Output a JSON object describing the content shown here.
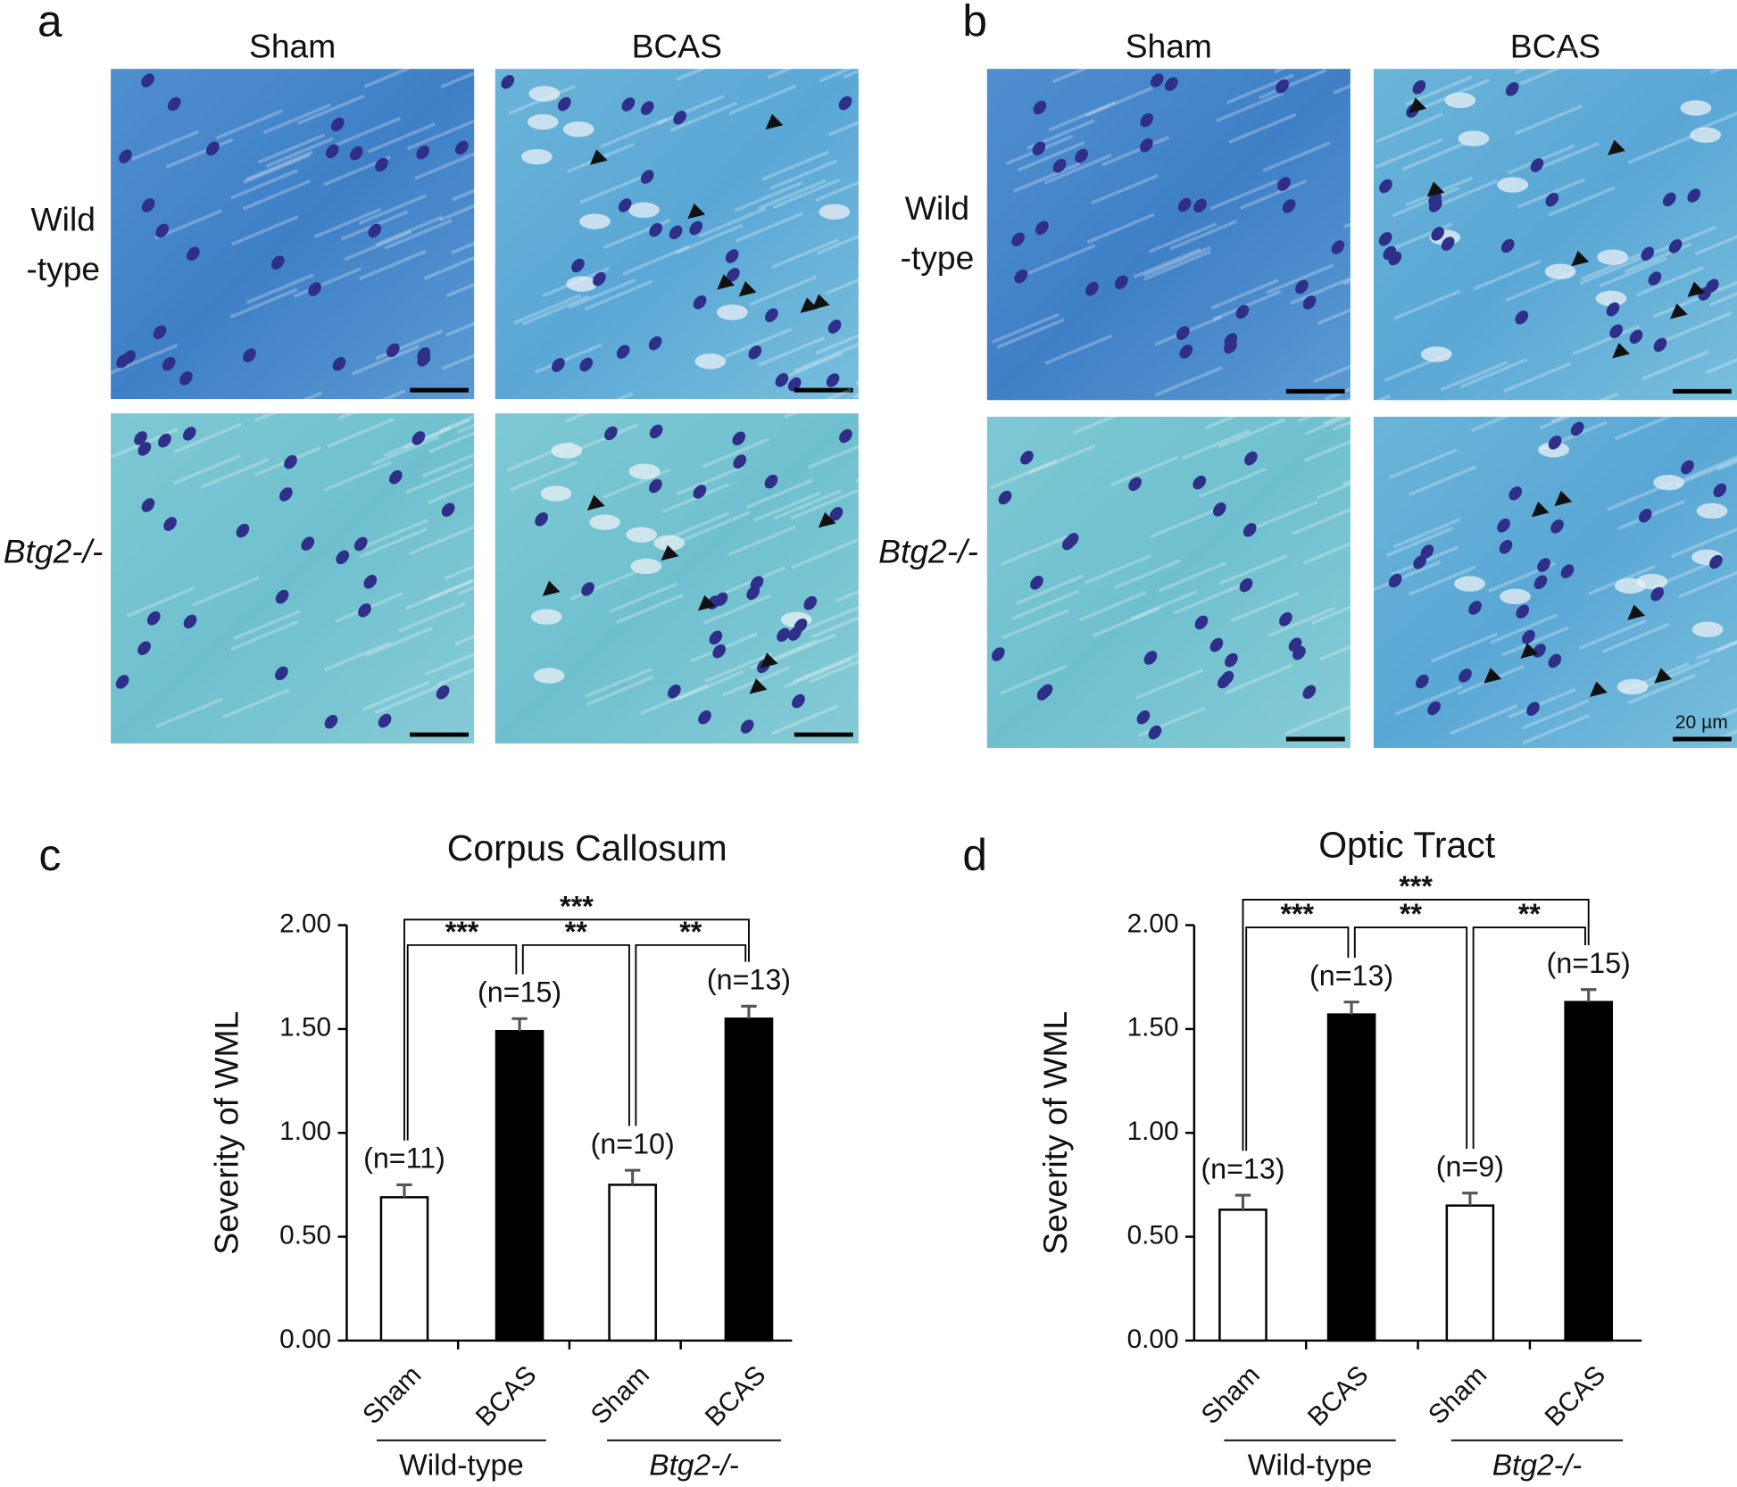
{
  "panels": [
    {
      "letter": "a",
      "columns": [
        "Sham",
        "BCAS"
      ],
      "rows": [
        [
          "Wild",
          "-type"
        ],
        [
          "Btg2-/-"
        ]
      ]
    },
    {
      "letter": "b",
      "columns": [
        "Sham",
        "BCAS"
      ],
      "rows": [
        [
          "Wild",
          "-type"
        ],
        [
          "Btg2-/-"
        ]
      ],
      "scale_bar_label": "20 µm"
    }
  ],
  "chart_data": [
    {
      "type": "bar",
      "letter": "c",
      "title": "Corpus Callosum",
      "ylabel": "Severity of WML",
      "categories": [
        "Sham",
        "BCAS",
        "Sham",
        "BCAS"
      ],
      "groups": [
        "Wild-type",
        "Btg2-/-"
      ],
      "values": [
        0.69,
        1.49,
        0.75,
        1.55
      ],
      "errors": [
        0.06,
        0.06,
        0.07,
        0.06
      ],
      "colors": [
        "#ffffff",
        "#000000",
        "#ffffff",
        "#000000"
      ],
      "n_labels": [
        "(n=11)",
        "(n=15)",
        "(n=10)",
        "(n=13)"
      ],
      "significance": [
        {
          "pair": [
            0,
            3
          ],
          "label": "***"
        },
        {
          "pair": [
            0,
            1
          ],
          "label": "***"
        },
        {
          "pair": [
            1,
            2
          ],
          "label": "**"
        },
        {
          "pair": [
            2,
            3
          ],
          "label": "**"
        }
      ],
      "ylim": [
        0,
        2
      ],
      "yticks": [
        {
          "value": 0,
          "label": "0.00"
        },
        {
          "value": 0.5,
          "label": "0.50"
        },
        {
          "value": 1,
          "label": "1.00"
        },
        {
          "value": 1.5,
          "label": "1.50"
        },
        {
          "value": 2,
          "label": "2.00"
        }
      ]
    },
    {
      "type": "bar",
      "letter": "d",
      "title": "Optic Tract",
      "ylabel": "Severity of WML",
      "categories": [
        "Sham",
        "BCAS",
        "Sham",
        "BCAS"
      ],
      "groups": [
        "Wild-type",
        "Btg2-/-"
      ],
      "values": [
        0.63,
        1.57,
        0.65,
        1.63
      ],
      "errors": [
        0.07,
        0.06,
        0.06,
        0.06
      ],
      "colors": [
        "#ffffff",
        "#000000",
        "#ffffff",
        "#000000"
      ],
      "n_labels": [
        "(n=13)",
        "(n=13)",
        "(n=9)",
        "(n=15)"
      ],
      "significance": [
        {
          "pair": [
            0,
            3
          ],
          "label": "***"
        },
        {
          "pair": [
            0,
            1
          ],
          "label": "***"
        },
        {
          "pair": [
            1,
            2
          ],
          "label": "**"
        },
        {
          "pair": [
            2,
            3
          ],
          "label": "**"
        }
      ],
      "ylim": [
        0,
        2
      ],
      "yticks": [
        {
          "value": 0,
          "label": "0.00"
        },
        {
          "value": 0.5,
          "label": "0.50"
        },
        {
          "value": 1,
          "label": "1.00"
        },
        {
          "value": 1.5,
          "label": "1.50"
        },
        {
          "value": 2,
          "label": "2.00"
        }
      ]
    }
  ]
}
